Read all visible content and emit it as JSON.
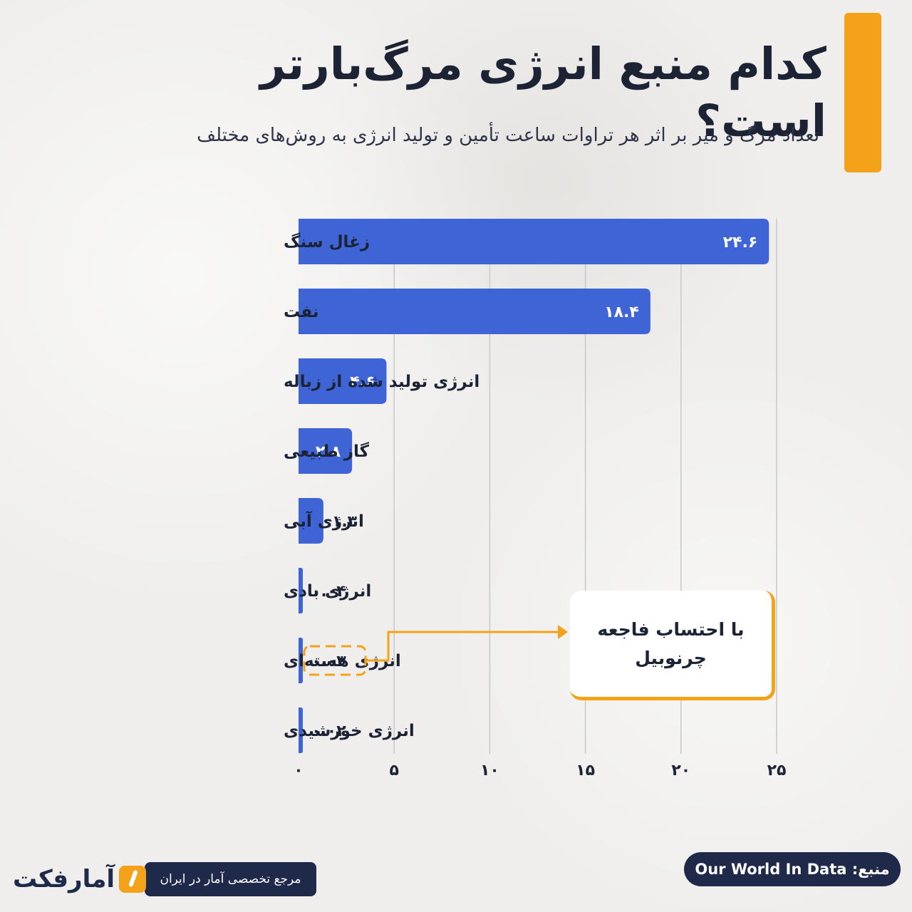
{
  "header": {
    "title": "کدام منبع انرژی مرگ‌بارتر است؟",
    "subtitle": "تعداد مرگ و میر بر اثر هر تراوات ساعت تأمین و تولید انرژی به روش‌های مختلف"
  },
  "chart_data": {
    "type": "bar",
    "orientation": "horizontal",
    "categories": [
      "زغال سنگ",
      "نفت",
      "انرژی تولید شده از زباله",
      "گاز طبیعی",
      "انرژی آبی",
      "انرژی بادی",
      "انرژی هسته‌ای",
      "انرژی خورشیدی"
    ],
    "values": [
      24.6,
      18.4,
      4.6,
      2.8,
      1.3,
      0.04,
      0.03,
      0.02
    ],
    "value_labels": [
      "۲۴.۶",
      "۱۸.۴",
      "۴.۶",
      "۲.۸",
      "۱.۳",
      "۰.۰۴",
      "۰.۰۳",
      "۰.۰۲"
    ],
    "xlim": [
      0,
      25
    ],
    "x_ticks": [
      0,
      5,
      10,
      15,
      20,
      25
    ],
    "x_tick_labels": [
      "۰",
      "۵",
      "۱۰",
      "۱۵",
      "۲۰",
      "۲۵"
    ],
    "grid": true,
    "highlighted_category": "انرژی هسته‌ای",
    "bar_color": "#3e64d6",
    "highlight_color": "#f5a21b"
  },
  "callout": {
    "text": "با احتساب فاجعه\nچرنوبیل"
  },
  "footer": {
    "source": "منبع: Our World In Data",
    "tagline": "مرجع تخصصی آمار در ایران",
    "logo_text": "آمارفکت"
  },
  "colors": {
    "accent": "#f5a21b",
    "navy": "#1f2a4b",
    "bar": "#3e64d6"
  }
}
